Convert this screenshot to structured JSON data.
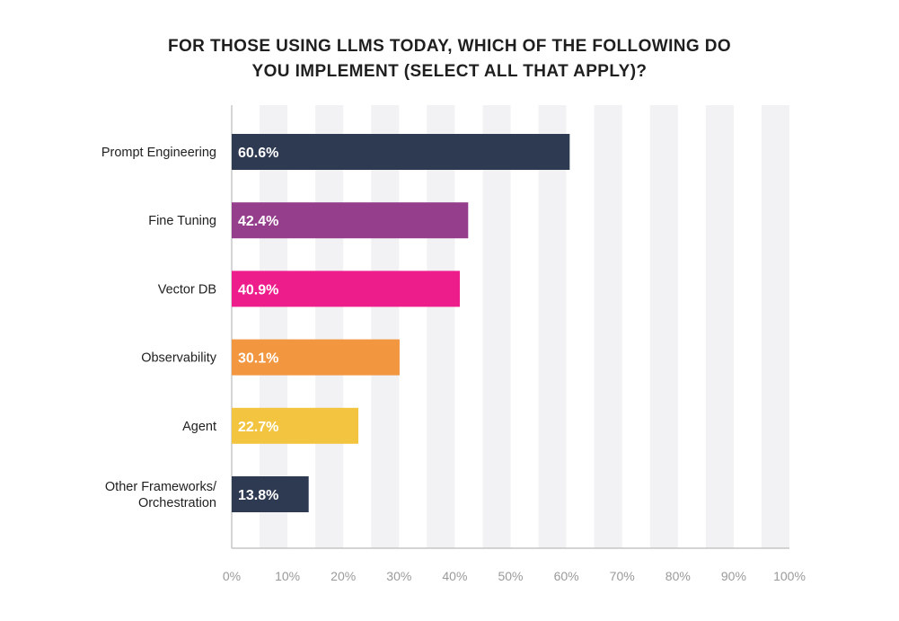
{
  "chart_data": {
    "type": "bar",
    "orientation": "horizontal",
    "title": "FOR THOSE USING LLMS TODAY, WHICH OF THE FOLLOWING DO YOU IMPLEMENT (SELECT ALL THAT APPLY)?",
    "categories": [
      [
        "Prompt Engineering"
      ],
      [
        "Fine Tuning"
      ],
      [
        "Vector DB"
      ],
      [
        "Observability"
      ],
      [
        "Agent"
      ],
      [
        "Other Frameworks/",
        "Orchestration"
      ]
    ],
    "values": [
      60.6,
      42.4,
      40.9,
      30.1,
      22.7,
      13.8
    ],
    "data_labels": [
      "60.6%",
      "42.4%",
      "40.9%",
      "30.1%",
      "22.7%",
      "13.8%"
    ],
    "colors": [
      "#2e3a52",
      "#943e8c",
      "#ed1e8c",
      "#f2963f",
      "#f2c43f",
      "#2e3a52"
    ],
    "xlim": [
      0,
      100
    ],
    "x_ticks": [
      "0%",
      "10%",
      "20%",
      "30%",
      "40%",
      "50%",
      "60%",
      "70%",
      "80%",
      "90%",
      "100%"
    ],
    "grid": "alternating vertical bands",
    "band_color": "#f2f2f4",
    "axis_color": "#bbbbbb",
    "legend": "none"
  }
}
